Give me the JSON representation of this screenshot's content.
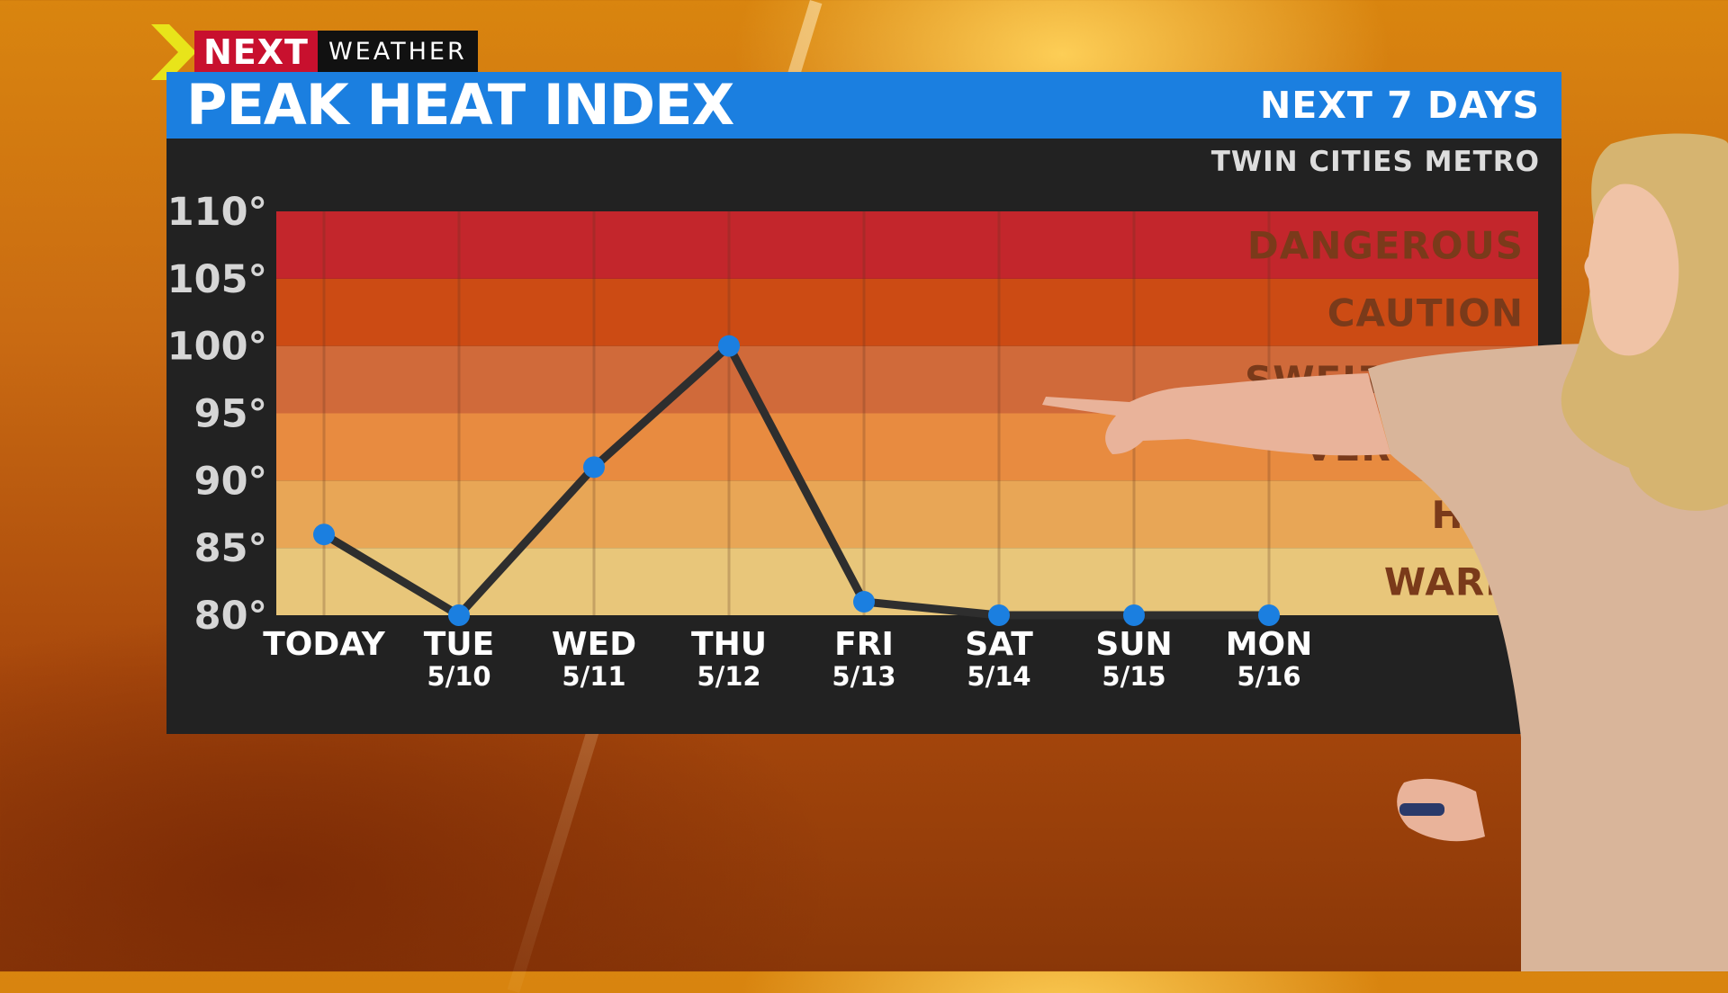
{
  "brand": {
    "name_bold": "NEXT",
    "name_rest": "WEATHER"
  },
  "header": {
    "title": "PEAK HEAT INDEX",
    "period": "NEXT 7 DAYS"
  },
  "region": "TWIN CITIES METRO",
  "colors": {
    "header_blue": "#1b7fe0",
    "panel": "#222222",
    "line": "#2e2e2e",
    "point": "#1b7fe0",
    "bands": [
      "#e8c67a",
      "#e8a656",
      "#e88b40",
      "#d06a3a",
      "#cc4b14",
      "#c3262c"
    ],
    "band_label": "#7a3a1a"
  },
  "chart_data": {
    "type": "line",
    "title": "PEAK HEAT INDEX",
    "xlabel": "",
    "ylabel": "",
    "ylim": [
      80,
      110
    ],
    "yticks": [
      "80°",
      "85°",
      "90°",
      "95°",
      "100°",
      "105°",
      "110°"
    ],
    "categories": [
      {
        "day": "TODAY",
        "date": ""
      },
      {
        "day": "TUE",
        "date": "5/10"
      },
      {
        "day": "WED",
        "date": "5/11"
      },
      {
        "day": "THU",
        "date": "5/12"
      },
      {
        "day": "FRI",
        "date": "5/13"
      },
      {
        "day": "SAT",
        "date": "5/14"
      },
      {
        "day": "SUN",
        "date": "5/15"
      },
      {
        "day": "MON",
        "date": "5/16"
      }
    ],
    "values": [
      86,
      80,
      91,
      100,
      81,
      80,
      80,
      80
    ],
    "bands": [
      {
        "label": "WARM",
        "from": 80,
        "to": 85
      },
      {
        "label": "HOT",
        "from": 85,
        "to": 90
      },
      {
        "label": "VERY HOT",
        "from": 90,
        "to": 95
      },
      {
        "label": "SWELTERING",
        "from": 95,
        "to": 100
      },
      {
        "label": "CAUTION",
        "from": 100,
        "to": 105
      },
      {
        "label": "DANGEROUS",
        "from": 105,
        "to": 110
      }
    ]
  }
}
